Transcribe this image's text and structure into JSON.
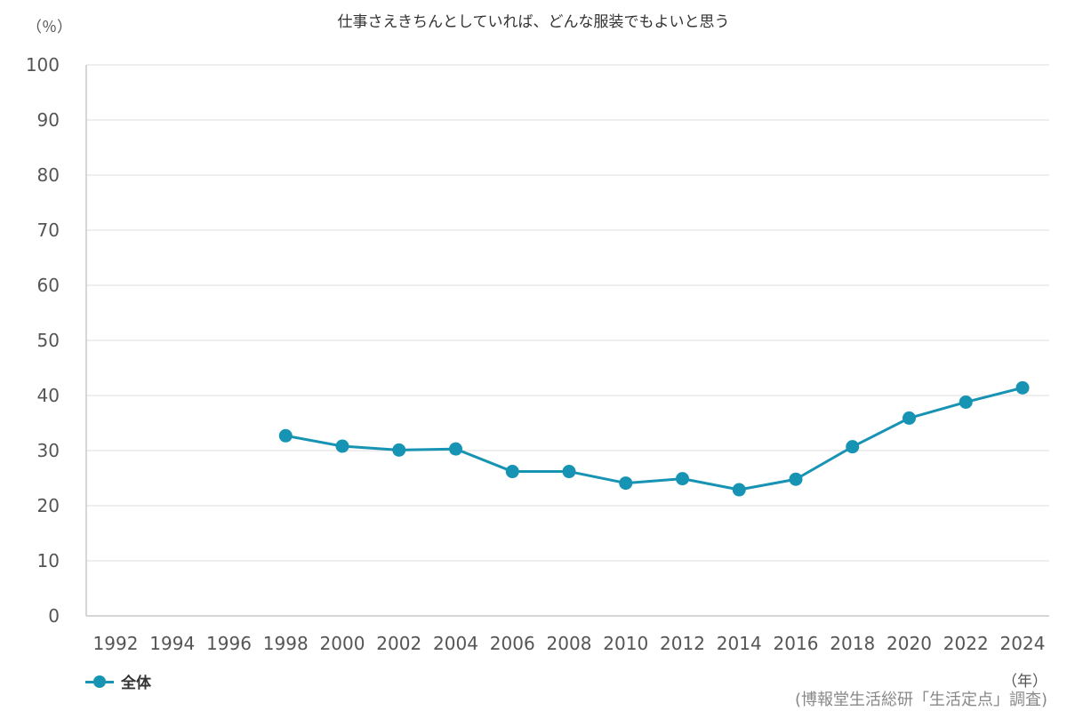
{
  "chart_data": {
    "type": "line",
    "title": "仕事さえきちんとしていれば、どんな服装でもよいと思う",
    "ylabel": "（％）",
    "xlabel": "（年）",
    "ylim": [
      0,
      100
    ],
    "yticks": [
      0,
      10,
      20,
      30,
      40,
      50,
      60,
      70,
      80,
      90,
      100
    ],
    "categories": [
      "1992",
      "1994",
      "1996",
      "1998",
      "2000",
      "2002",
      "2004",
      "2006",
      "2008",
      "2010",
      "2012",
      "2014",
      "2016",
      "2018",
      "2020",
      "2022",
      "2024"
    ],
    "grid": true,
    "legend_position": "bottom-left",
    "series": [
      {
        "name": "全体",
        "color": "#1793b3",
        "values": [
          null,
          null,
          null,
          32.7,
          30.8,
          30.1,
          30.3,
          26.2,
          26.2,
          24.1,
          24.9,
          22.9,
          24.8,
          30.7,
          35.9,
          38.8,
          41.4
        ]
      }
    ],
    "source": "(博報堂生活総研「生活定点」調査)"
  }
}
